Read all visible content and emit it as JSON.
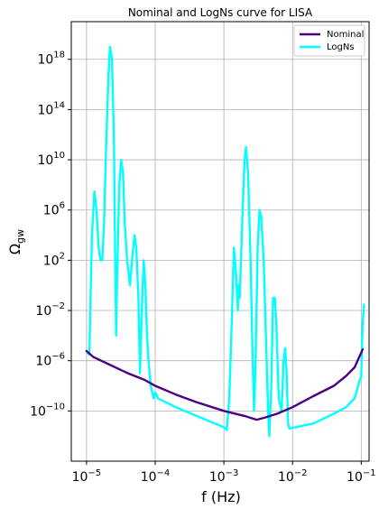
{
  "chart_data": {
    "type": "line",
    "title": "Nominal and LogNs curve for LISA",
    "xlabel": "f (Hz)",
    "ylabel": "Ω",
    "ylabel_sub": "gw",
    "xscale": "log",
    "yscale": "log",
    "xlim": [
      6e-06,
      0.13
    ],
    "ylim": [
      1e-14,
      1e+21
    ],
    "grid": true,
    "legend_position": "top-right",
    "x_ticks": [
      {
        "base": "10",
        "exp": "−5",
        "value": 1e-05
      },
      {
        "base": "10",
        "exp": "−4",
        "value": 0.0001
      },
      {
        "base": "10",
        "exp": "−3",
        "value": 0.001
      },
      {
        "base": "10",
        "exp": "−2",
        "value": 0.01
      },
      {
        "base": "10",
        "exp": "−1",
        "value": 0.1
      }
    ],
    "y_ticks": [
      {
        "base": "10",
        "exp": "−10",
        "value": 1e-10
      },
      {
        "base": "10",
        "exp": "−6",
        "value": 1e-06
      },
      {
        "base": "10",
        "exp": "−2",
        "value": 0.01
      },
      {
        "base": "10",
        "exp": "2",
        "value": 100.0
      },
      {
        "base": "10",
        "exp": "6",
        "value": 1000000.0
      },
      {
        "base": "10",
        "exp": "10",
        "value": 10000000000.0
      },
      {
        "base": "10",
        "exp": "14",
        "value": 100000000000000.0
      },
      {
        "base": "10",
        "exp": "18",
        "value": 1e+18
      }
    ],
    "series": [
      {
        "name": "Nominal",
        "color": "#4b0082",
        "points": [
          [
            1e-05,
            6e-06
          ],
          [
            1.25e-05,
            2e-06
          ],
          [
            2e-05,
            6e-07
          ],
          [
            4e-05,
            1e-07
          ],
          [
            7e-05,
            3e-08
          ],
          [
            0.0001,
            1e-08
          ],
          [
            0.0002,
            2e-09
          ],
          [
            0.0004,
            5e-10
          ],
          [
            0.001,
            1e-10
          ],
          [
            0.002,
            4e-11
          ],
          [
            0.003,
            2e-11
          ],
          [
            0.004,
            3e-11
          ],
          [
            0.006,
            6e-11
          ],
          [
            0.01,
            2e-10
          ],
          [
            0.02,
            1.5e-09
          ],
          [
            0.04,
            1e-08
          ],
          [
            0.06,
            6e-08
          ],
          [
            0.08,
            3e-07
          ],
          [
            0.105,
            8e-06
          ]
        ]
      },
      {
        "name": "LogNs",
        "color": "#00ffff",
        "points": [
          [
            1e-05,
            5e-06
          ],
          [
            1.1e-05,
            3e-06
          ],
          [
            1.2e-05,
            10000.0
          ],
          [
            1.3e-05,
            30000000.0
          ],
          [
            1.4e-05,
            1000000.0
          ],
          [
            1.5e-05,
            1000.0
          ],
          [
            1.6e-05,
            100.0
          ],
          [
            1.7e-05,
            100.0
          ],
          [
            1.8e-05,
            100000.0
          ],
          [
            1.95e-05,
            1000000000000.0
          ],
          [
            2.1e-05,
            1e+17
          ],
          [
            2.2e-05,
            1e+19
          ],
          [
            2.35e-05,
            1e+18
          ],
          [
            2.5e-05,
            1000000000000.0
          ],
          [
            2.6e-05,
            1000.0
          ],
          [
            2.7e-05,
            0.0001
          ],
          [
            2.8e-05,
            10.0
          ],
          [
            3e-05,
            100000000.0
          ],
          [
            3.2e-05,
            10000000000.0
          ],
          [
            3.4e-05,
            1000000000.0
          ],
          [
            3.6e-05,
            100000.0
          ],
          [
            3.9e-05,
            100.0
          ],
          [
            4.3e-05,
            1.0
          ],
          [
            4.6e-05,
            100.0
          ],
          [
            5e-05,
            10000.0
          ],
          [
            5.3e-05,
            1000.0
          ],
          [
            5.7e-05,
            0.1
          ],
          [
            6e-05,
            1e-07
          ],
          [
            6.4e-05,
            0.01
          ],
          [
            6.8e-05,
            100.0
          ],
          [
            7.2e-05,
            1.0
          ],
          [
            7.6e-05,
            0.0001
          ],
          [
            8e-05,
            1e-06
          ],
          [
            8.6e-05,
            1e-08
          ],
          [
            9.5e-05,
            1e-09
          ],
          [
            0.0001,
            3e-09
          ],
          [
            0.00011,
            1e-09
          ],
          [
            0.0002,
            2e-10
          ],
          [
            0.0004,
            4e-11
          ],
          [
            0.001,
            5e-12
          ],
          [
            0.0011,
            3e-12
          ],
          [
            0.0012,
            1e-09
          ],
          [
            0.0013,
            0.001
          ],
          [
            0.0014,
            1000.0
          ],
          [
            0.0015,
            10.0
          ],
          [
            0.0016,
            0.01
          ],
          [
            0.00165,
            1.0
          ],
          [
            0.0017,
            0.1
          ],
          [
            0.00185,
            100000.0
          ],
          [
            0.002,
            10000000000.0
          ],
          [
            0.0021,
            100000000000.0
          ],
          [
            0.00225,
            1000000000.0
          ],
          [
            0.00245,
            100.0
          ],
          [
            0.0026,
            1e-05
          ],
          [
            0.00275,
            1e-10
          ],
          [
            0.0029,
            1e-06
          ],
          [
            0.0031,
            1000.0
          ],
          [
            0.0033,
            1000000.0
          ],
          [
            0.0035,
            300000.0
          ],
          [
            0.0038,
            100.0
          ],
          [
            0.0041,
            0.0001
          ],
          [
            0.0044,
            1e-10
          ],
          [
            0.0046,
            1e-12
          ],
          [
            0.0049,
            1e-08
          ],
          [
            0.0052,
            0.1
          ],
          [
            0.0055,
            0.1
          ],
          [
            0.0058,
            0.001
          ],
          [
            0.0063,
            1e-09
          ],
          [
            0.0069,
            1e-10
          ],
          [
            0.0074,
            1e-06
          ],
          [
            0.0078,
            1e-05
          ],
          [
            0.0082,
            1e-07
          ],
          [
            0.0086,
            1e-11
          ],
          [
            0.009,
            4e-12
          ],
          [
            0.02,
            1e-11
          ],
          [
            0.04,
            6e-11
          ],
          [
            0.06,
            2e-10
          ],
          [
            0.08,
            1e-09
          ],
          [
            0.095,
            3e-08
          ],
          [
            0.1,
            5e-08
          ],
          [
            0.105,
            0.001
          ],
          [
            0.11,
            0.03
          ]
        ]
      }
    ]
  }
}
